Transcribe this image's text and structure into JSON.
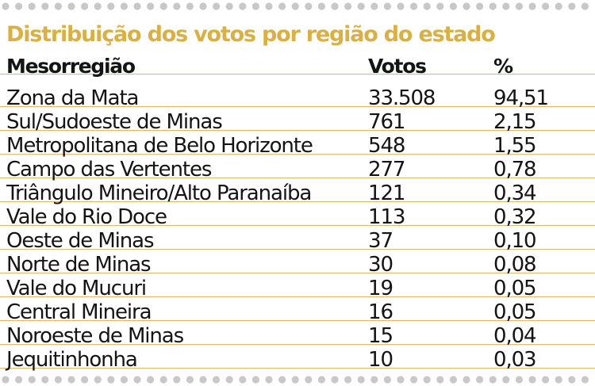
{
  "chart_data": {
    "type": "table",
    "title": "Distribuição dos votos por região do estado",
    "columns": [
      "Mesorregião",
      "Votos",
      "%"
    ],
    "rows": [
      [
        "Zona da Mata",
        "33.508",
        "94,51"
      ],
      [
        "Sul/Sudoeste de Minas",
        "761",
        "2,15"
      ],
      [
        "Metropolitana de Belo Horizonte",
        "548",
        "1,55"
      ],
      [
        "Campo das Vertentes",
        "277",
        "0,78"
      ],
      [
        "Triângulo Mineiro/Alto Paranaíba",
        "121",
        "0,34"
      ],
      [
        "Vale do Rio Doce",
        "113",
        "0,32"
      ],
      [
        "Oeste de Minas",
        "37",
        "0,10"
      ],
      [
        "Norte de Minas",
        "30",
        "0,08"
      ],
      [
        "Vale do Mucuri",
        "19",
        "0,05"
      ],
      [
        "Central Mineira",
        "16",
        "0,05"
      ],
      [
        "Noroeste de Minas",
        "15",
        "0,04"
      ],
      [
        "Jequitinhonha",
        "10",
        "0,03"
      ]
    ]
  },
  "colors": {
    "title": "#d9b046",
    "rule": "#ddb967",
    "text": "#141414",
    "dots": "#c8c8c8"
  }
}
